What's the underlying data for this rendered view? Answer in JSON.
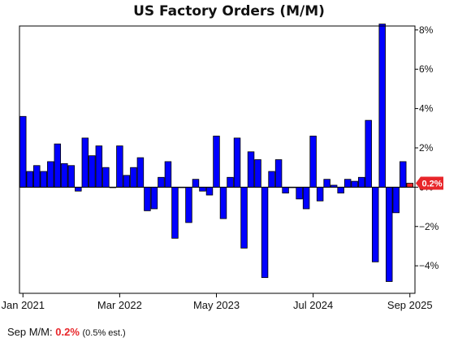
{
  "chart_data": {
    "type": "bar",
    "title": "US Factory Orders (M/M)",
    "unit": "%",
    "ylim": [
      -5.4,
      8.2
    ],
    "yticks": [
      {
        "value": 8,
        "label": "8%"
      },
      {
        "value": 6,
        "label": "6%"
      },
      {
        "value": 4,
        "label": "4%"
      },
      {
        "value": 2,
        "label": "2%"
      },
      {
        "value": 0,
        "label": "0%"
      },
      {
        "value": -2,
        "label": "−2%"
      },
      {
        "value": -4,
        "label": "−4%"
      }
    ],
    "xticks": [
      {
        "index": 0,
        "label": "Jan 2021"
      },
      {
        "index": 14,
        "label": "Mar 2022"
      },
      {
        "index": 28,
        "label": "May 2023"
      },
      {
        "index": 42,
        "label": "Jul 2024"
      },
      {
        "index": 56,
        "label": "Sep 2025"
      }
    ],
    "values": [
      3.6,
      0.8,
      1.1,
      0.8,
      1.3,
      2.2,
      1.2,
      1.1,
      -0.2,
      2.5,
      1.6,
      2.1,
      1.0,
      0.0,
      2.1,
      0.6,
      1.0,
      1.5,
      -1.2,
      -1.1,
      0.5,
      1.3,
      -2.6,
      0.0,
      -1.8,
      0.4,
      -0.2,
      -0.4,
      2.6,
      -1.6,
      0.5,
      2.5,
      -3.1,
      1.8,
      1.4,
      -4.6,
      0.8,
      1.4,
      -0.3,
      0.0,
      -0.6,
      -1.1,
      2.6,
      -0.7,
      0.4,
      0.1,
      -0.3,
      0.4,
      0.3,
      0.5,
      3.4,
      -3.8,
      8.3,
      -4.8,
      -1.3,
      1.3,
      0.2
    ],
    "bar_color": "#0000ff",
    "highlight_color": "#e8262a",
    "last_value_label": "0.2%"
  },
  "footer": {
    "label": "Sep M/M:",
    "value": "0.2%",
    "estimate": "(0.5% est.)"
  }
}
